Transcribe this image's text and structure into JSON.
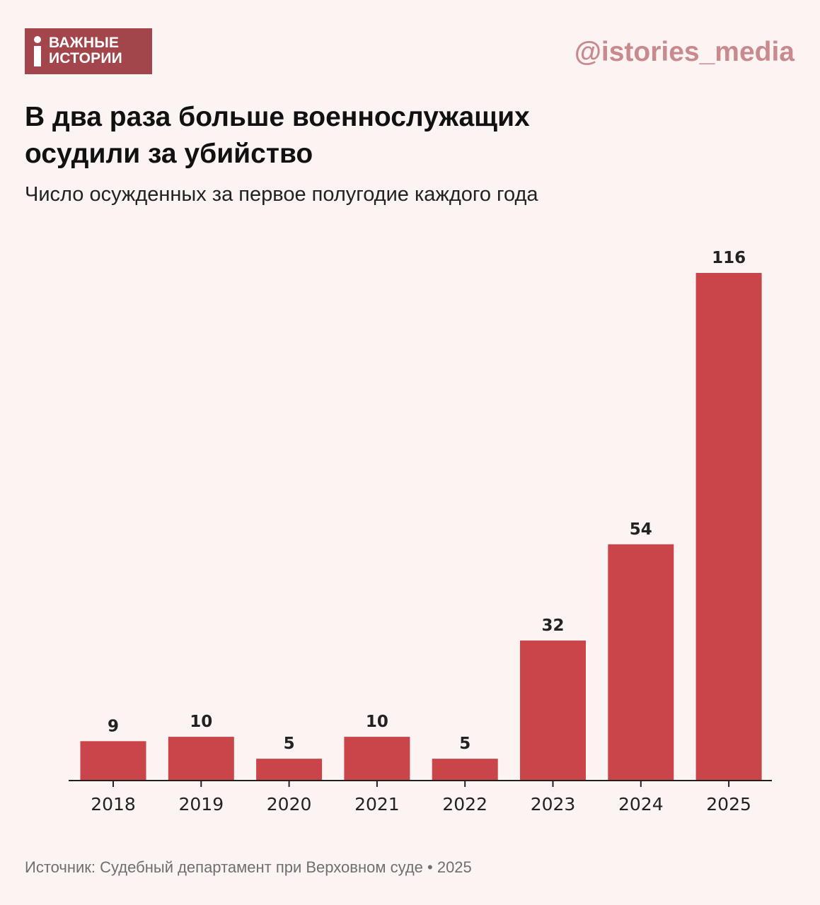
{
  "logo": {
    "line1": "ВАЖНЫЕ",
    "line2": "ИСТОРИИ",
    "color": "#a3464c"
  },
  "handle": "@istories_media",
  "header": {
    "title_line1": "В два раза больше военнослужащих",
    "title_line2": "осудили за убийство",
    "subtitle": "Число осужденных за первое полугодие каждого года"
  },
  "chart_data": {
    "type": "bar",
    "categories": [
      "2018",
      "2019",
      "2020",
      "2021",
      "2022",
      "2023",
      "2024",
      "2025"
    ],
    "values": [
      9,
      10,
      5,
      10,
      5,
      32,
      54,
      116
    ],
    "title": "В два раза больше военнослужащих осудили за убийство",
    "subtitle": "Число осужденных за первое полугодие каждого года",
    "xlabel": "",
    "ylabel": "",
    "ylim": [
      0,
      116
    ],
    "grid": false,
    "legend": "none",
    "bar_color": "#c9454a"
  },
  "footer": {
    "source": "Источник: Судебный департамент при Верховном суде • 2025"
  }
}
